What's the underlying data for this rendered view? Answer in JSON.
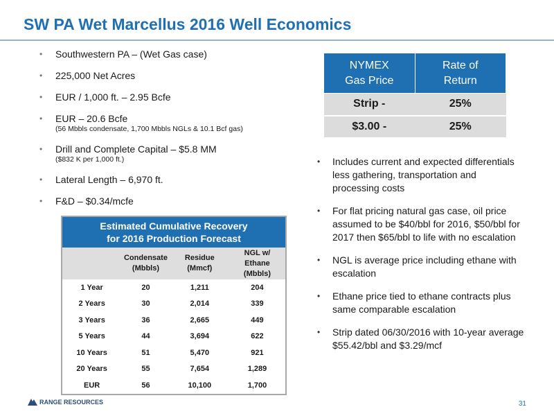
{
  "title": "SW PA Wet Marcellus 2016 Well Economics",
  "left_bullets": [
    {
      "text": "Southwestern PA – (Wet Gas case)",
      "sub": ""
    },
    {
      "text": "225,000 Net Acres",
      "sub": ""
    },
    {
      "text": "EUR / 1,000 ft. – 2.95 Bcfe",
      "sub": ""
    },
    {
      "text": "EUR – 20.6 Bcfe",
      "sub": "(56 Mbbls condensate, 1,700 Mbbls NGLs & 10.1 Bcf gas)"
    },
    {
      "text": "Drill and Complete Capital – $5.8 MM",
      "sub": "($832 K per 1,000 ft.)"
    },
    {
      "text": "Lateral Length – 6,970 ft.",
      "sub": ""
    },
    {
      "text": "F&D – $0.34/mcfe",
      "sub": ""
    }
  ],
  "nymex_table": {
    "col1_line1": "NYMEX",
    "col1_line2": "Gas Price",
    "col2_line1": "Rate of",
    "col2_line2": "Return",
    "rows": [
      {
        "price": "Strip   -",
        "ror": "25%"
      },
      {
        "price": "$3.00  -",
        "ror": "25%"
      }
    ]
  },
  "right_bullets": [
    "Includes current and expected differentials less gathering, transportation and processing costs",
    "For flat pricing natural gas case, oil price assumed to be $40/bbl for 2016, $50/bbl for 2017 then $65/bbl to life with no escalation",
    "NGL is average price including ethane with escalation",
    "Ethane price tied to ethane contracts plus same comparable escalation",
    "Strip dated 06/30/2016 with 10-year average $55.42/bbl and $3.29/mcf"
  ],
  "recovery_table": {
    "title_line1": "Estimated Cumulative Recovery",
    "title_line2": "for 2016 Production Forecast",
    "headers": {
      "condensate_1": "Condensate",
      "condensate_2": "(Mbbls)",
      "residue_1": "Residue",
      "residue_2": "(Mmcf)",
      "ngl_1": "NGL w/",
      "ngl_2": "Ethane",
      "ngl_3": "(Mbbls)"
    },
    "rows": [
      {
        "period": "1 Year",
        "condensate": "20",
        "residue": "1,211",
        "ngl": "204"
      },
      {
        "period": "2 Years",
        "condensate": "30",
        "residue": "2,014",
        "ngl": "339"
      },
      {
        "period": "3 Years",
        "condensate": "36",
        "residue": "2,665",
        "ngl": "449"
      },
      {
        "period": "5 Years",
        "condensate": "44",
        "residue": "3,694",
        "ngl": "622"
      },
      {
        "period": "10 Years",
        "condensate": "51",
        "residue": "5,470",
        "ngl": "921"
      },
      {
        "period": "20 Years",
        "condensate": "55",
        "residue": "7,654",
        "ngl": "1,289"
      },
      {
        "period": "EUR",
        "condensate": "56",
        "residue": "10,100",
        "ngl": "1,700"
      }
    ]
  },
  "footer": {
    "logo_text": "RANGE RESOURCES",
    "page_number": "31",
    "logo_color": "#2b4d7a"
  },
  "colors": {
    "accent": "#1f6fb3",
    "table_gray": "#dcdcdc"
  }
}
